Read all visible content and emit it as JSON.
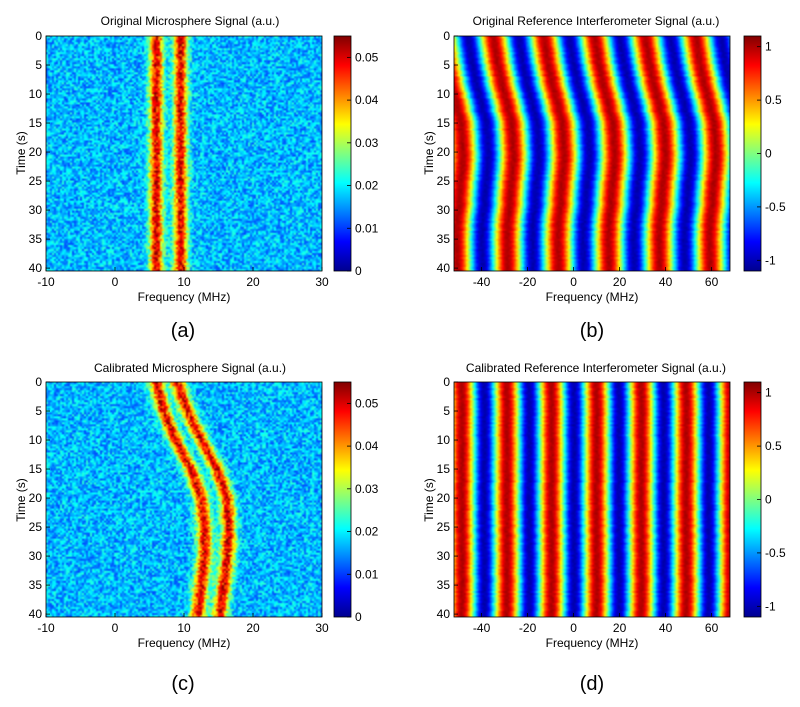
{
  "panels": [
    {
      "id": "a",
      "label": "(a)",
      "chart_data": {
        "type": "heatmap",
        "title": "Original Microsphere Signal (a.u.)",
        "xlabel": "Frequency (MHz)",
        "ylabel": "Time (s)",
        "xlim": [
          -10,
          30
        ],
        "ylim": [
          0,
          40.5
        ],
        "xticks": [
          -10,
          0,
          10,
          20,
          30
        ],
        "yticks": [
          0,
          5,
          10,
          15,
          20,
          25,
          30,
          35,
          40
        ],
        "clim": [
          0,
          0.055
        ],
        "cticks": [
          0,
          0.01,
          0.02,
          0.03,
          0.04,
          0.05
        ],
        "colormap": "jet",
        "background_level": 0.017,
        "peak_level": 0.05,
        "peak_width_mhz": 0.7,
        "lines": [
          {
            "name": "resonance-1",
            "time_s": [
              0,
              40
            ],
            "frequency_mhz": [
              6,
              6
            ]
          },
          {
            "name": "resonance-2",
            "time_s": [
              0,
              40
            ],
            "frequency_mhz": [
              9.5,
              9.5
            ]
          }
        ]
      }
    },
    {
      "id": "b",
      "label": "(b)",
      "chart_data": {
        "type": "heatmap",
        "title": "Original Reference Interferometer Signal (a.u.)",
        "xlabel": "Frequency (MHz)",
        "ylabel": "Time (s)",
        "xlim": [
          -52,
          68
        ],
        "ylim": [
          0,
          40.5
        ],
        "xticks": [
          -40,
          -20,
          0,
          20,
          40,
          60
        ],
        "yticks": [
          0,
          5,
          10,
          15,
          20,
          25,
          30,
          35,
          40
        ],
        "clim": [
          -1.1,
          1.1
        ],
        "cticks": [
          -1,
          -0.5,
          0,
          0.5,
          1
        ],
        "colormap": "jet",
        "fringe_period_mhz": 22,
        "fringe_max_frequency_mhz": [
          -31,
          9.5,
          49
        ],
        "drift": {
          "time_s": [
            0,
            5,
            10,
            15,
            20,
            25,
            30,
            35,
            40
          ],
          "shift_mhz": [
            -4,
            -2,
            1,
            4,
            5,
            4,
            3,
            2,
            2.5
          ]
        }
      }
    },
    {
      "id": "c",
      "label": "(c)",
      "chart_data": {
        "type": "heatmap",
        "title": "Calibrated Microsphere Signal (a.u.)",
        "xlabel": "Frequency (MHz)",
        "ylabel": "Time (s)",
        "xlim": [
          -10,
          30
        ],
        "ylim": [
          0,
          40.5
        ],
        "xticks": [
          -10,
          0,
          10,
          20,
          30
        ],
        "yticks": [
          0,
          5,
          10,
          15,
          20,
          25,
          30,
          35,
          40
        ],
        "clim": [
          0,
          0.055
        ],
        "cticks": [
          0,
          0.01,
          0.02,
          0.03,
          0.04,
          0.05
        ],
        "colormap": "jet",
        "background_level": 0.017,
        "peak_level": 0.05,
        "peak_width_mhz": 0.75,
        "lines": [
          {
            "name": "resonance-1",
            "time_s": [
              0,
              5,
              10,
              15,
              20,
              25,
              30,
              35,
              40
            ],
            "frequency_mhz": [
              6,
              7,
              8.8,
              11,
              12.5,
              13,
              13,
              12.5,
              12
            ]
          },
          {
            "name": "resonance-2",
            "time_s": [
              0,
              5,
              10,
              15,
              20,
              25,
              30,
              35,
              40
            ],
            "frequency_mhz": [
              9,
              10.5,
              12.5,
              14.8,
              16.2,
              16.5,
              16.3,
              15.8,
              15.2
            ]
          }
        ]
      }
    },
    {
      "id": "d",
      "label": "(d)",
      "chart_data": {
        "type": "heatmap",
        "title": "Calibrated Reference Interferometer Signal (a.u.)",
        "xlabel": "Frequency (MHz)",
        "ylabel": "Time (s)",
        "xlim": [
          -52,
          68
        ],
        "ylim": [
          0,
          40.5
        ],
        "xticks": [
          -40,
          -20,
          0,
          20,
          40,
          60
        ],
        "yticks": [
          0,
          5,
          10,
          15,
          20,
          25,
          30,
          35,
          40
        ],
        "clim": [
          -1.1,
          1.1
        ],
        "cticks": [
          -1,
          -0.5,
          0,
          0.5,
          1
        ],
        "colormap": "jet",
        "fringe_period_mhz": 19.5,
        "fringe_max_frequency_mhz": [
          -29,
          -10,
          10,
          29,
          49
        ],
        "drift": {
          "time_s": [
            0,
            40
          ],
          "shift_mhz": [
            0,
            0
          ]
        }
      }
    }
  ]
}
